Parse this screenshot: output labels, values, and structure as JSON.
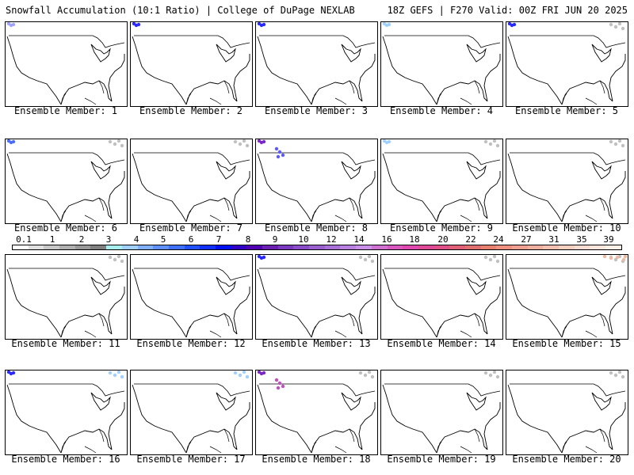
{
  "header": {
    "left": "Snowfall Accumulation (10:1 Ratio) | College of DuPage NEXLAB",
    "right": "18Z GEFS | F270 Valid: 00Z FRI JUN 20 2025"
  },
  "members": [
    {
      "label": "Ensemble Member: 1",
      "snow_blobs": [
        {
          "region": "pacific-northwest",
          "color": "#9fa3ff"
        }
      ]
    },
    {
      "label": "Ensemble Member: 2",
      "snow_blobs": [
        {
          "region": "pacific-northwest",
          "color": "#2a2aff"
        }
      ]
    },
    {
      "label": "Ensemble Member: 3",
      "snow_blobs": [
        {
          "region": "pacific-northwest",
          "color": "#2a2aff"
        }
      ]
    },
    {
      "label": "Ensemble Member: 4",
      "snow_blobs": [
        {
          "region": "pacific-northwest",
          "color": "#9fd0ff"
        }
      ]
    },
    {
      "label": "Ensemble Member: 5",
      "snow_blobs": [
        {
          "region": "pacific-northwest",
          "color": "#2a2aff"
        },
        {
          "region": "northeast-canada",
          "color": "#c0c0c0"
        }
      ]
    },
    {
      "label": "Ensemble Member: 6",
      "snow_blobs": [
        {
          "region": "pacific-northwest",
          "color": "#4a6cff"
        },
        {
          "region": "northeast-canada",
          "color": "#c0c0c0"
        }
      ]
    },
    {
      "label": "Ensemble Member: 7",
      "snow_blobs": [
        {
          "region": "northeast-canada",
          "color": "#c0c0c0"
        }
      ]
    },
    {
      "label": "Ensemble Member: 8",
      "snow_blobs": [
        {
          "region": "pacific-northwest",
          "color": "#7a28c8"
        },
        {
          "region": "northern-rockies",
          "color": "#5a5aff"
        }
      ]
    },
    {
      "label": "Ensemble Member: 9",
      "snow_blobs": [
        {
          "region": "pacific-northwest",
          "color": "#9fd0ff"
        },
        {
          "region": "northeast-canada",
          "color": "#c0c0c0"
        }
      ]
    },
    {
      "label": "Ensemble Member: 10",
      "snow_blobs": [
        {
          "region": "northeast-canada",
          "color": "#c0c0c0"
        }
      ]
    },
    {
      "label": "Ensemble Member: 11",
      "snow_blobs": [
        {
          "region": "northeast-canada",
          "color": "#c0c0c0"
        }
      ]
    },
    {
      "label": "Ensemble Member: 12",
      "snow_blobs": []
    },
    {
      "label": "Ensemble Member: 13",
      "snow_blobs": [
        {
          "region": "pacific-northwest",
          "color": "#2a2aff"
        },
        {
          "region": "northeast-canada",
          "color": "#c0c0c0"
        }
      ]
    },
    {
      "label": "Ensemble Member: 14",
      "snow_blobs": [
        {
          "region": "northeast-canada",
          "color": "#c0c0c0"
        }
      ]
    },
    {
      "label": "Ensemble Member: 15",
      "snow_blobs": [
        {
          "region": "northeast-canada",
          "color": "#c0c0c0"
        },
        {
          "region": "labrador",
          "color": "#f0b8a0"
        }
      ]
    },
    {
      "label": "Ensemble Member: 16",
      "snow_blobs": [
        {
          "region": "pacific-northwest",
          "color": "#2a2aff"
        },
        {
          "region": "northeast-canada",
          "color": "#9fd0ff"
        }
      ]
    },
    {
      "label": "Ensemble Member: 17",
      "snow_blobs": [
        {
          "region": "northeast-canada",
          "color": "#9fd0ff"
        }
      ]
    },
    {
      "label": "Ensemble Member: 18",
      "snow_blobs": [
        {
          "region": "pacific-northwest",
          "color": "#7a28c8"
        },
        {
          "region": "northern-rockies",
          "color": "#c050c0"
        },
        {
          "region": "northeast-canada",
          "color": "#c0c0c0"
        }
      ]
    },
    {
      "label": "Ensemble Member: 19",
      "snow_blobs": [
        {
          "region": "northeast-canada",
          "color": "#c0c0c0"
        }
      ]
    },
    {
      "label": "Ensemble Member: 20",
      "snow_blobs": [
        {
          "region": "northeast-canada",
          "color": "#c0c0c0"
        }
      ]
    }
  ],
  "legend": {
    "ticks": [
      "0.1",
      "1",
      "2",
      "3",
      "4",
      "5",
      "6",
      "7",
      "8",
      "9",
      "10",
      "12",
      "14",
      "16",
      "18",
      "20",
      "22",
      "24",
      "27",
      "31",
      "35",
      "39"
    ],
    "colors": [
      "#ffffff",
      "#e0e0e0",
      "#c8c8c8",
      "#b0b0b0",
      "#989898",
      "#808080",
      "#a8f0f0",
      "#9fd0ff",
      "#80b0ff",
      "#6090ff",
      "#4070ff",
      "#2050ff",
      "#1030ff",
      "#0010f0",
      "#3000c8",
      "#5000b0",
      "#6a20b0",
      "#7a38c0",
      "#8a4cc8",
      "#9a60d0",
      "#a870d8",
      "#b880e0",
      "#c890e8",
      "#d070d0",
      "#d858c0",
      "#e048b0",
      "#e04898",
      "#e05088",
      "#e06078",
      "#e07070",
      "#e88070",
      "#f09080",
      "#f0a090",
      "#f0b0a0",
      "#f4c0b0",
      "#f8d0c0",
      "#fcdcd0",
      "#fde6dc",
      "#fff0e8"
    ]
  }
}
